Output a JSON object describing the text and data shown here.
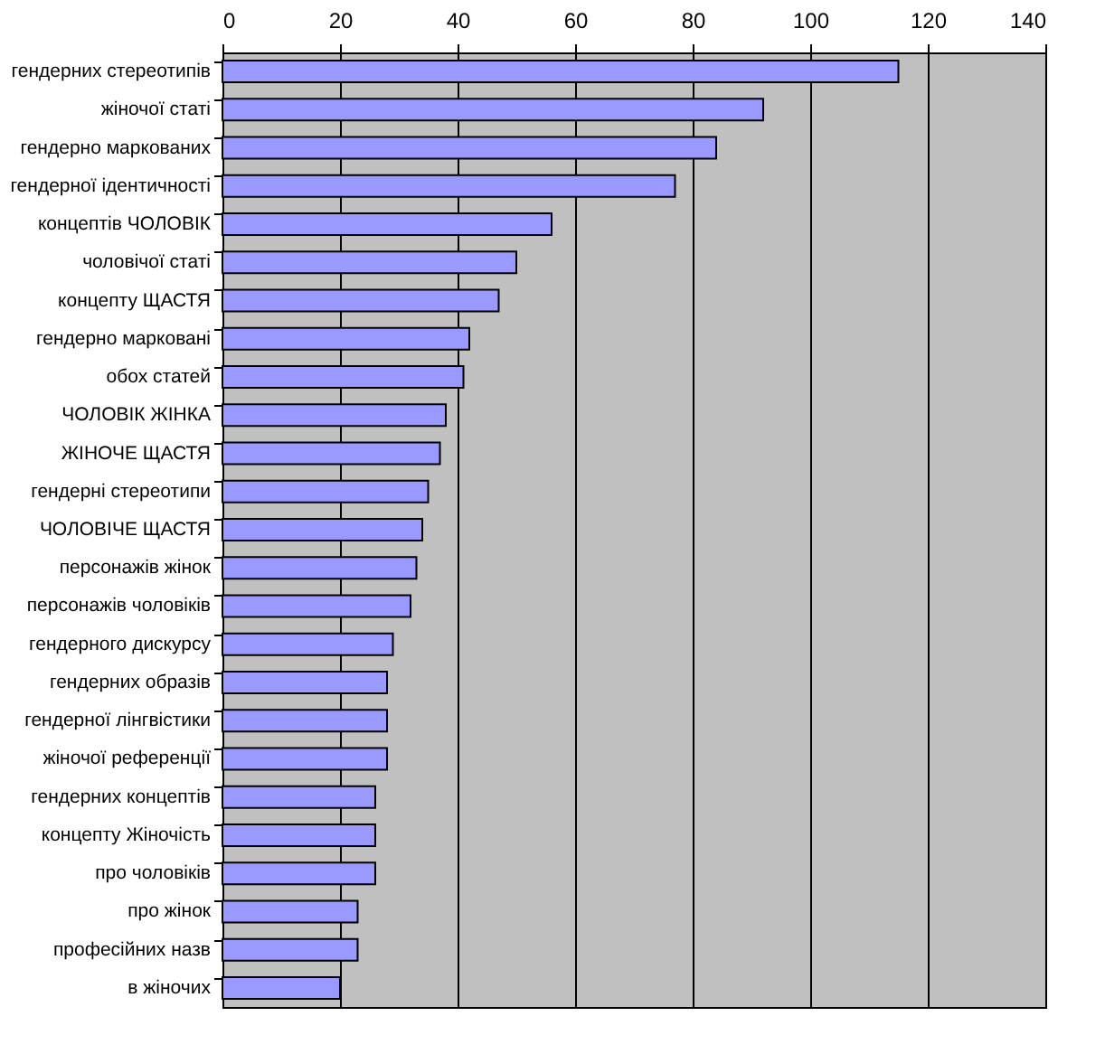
{
  "chart_data": {
    "type": "bar",
    "orientation": "horizontal",
    "categories": [
      "гендерних стереотипів",
      "жіночої статі",
      "гендерно маркованих",
      "гендерної ідентичності",
      "концептів ЧОЛОВІК",
      "чоловічої статі",
      "концепту ЩАСТЯ",
      "гендерно марковані",
      "обох статей",
      "ЧОЛОВІК ЖІНКА",
      "ЖІНОЧЕ ЩАСТЯ",
      "гендерні стереотипи",
      "ЧОЛОВІЧЕ ЩАСТЯ",
      "персонажів жінок",
      "персонажів чоловіків",
      "гендерного дискурсу",
      "гендерних образів",
      "гендерної лінгвістики",
      "жіночої референції",
      "гендерних концептів",
      "концепту Жіночість",
      "про чоловіків",
      "про жінок",
      "професійних назв",
      "в жіночих"
    ],
    "values": [
      115,
      92,
      84,
      77,
      56,
      50,
      47,
      42,
      41,
      38,
      37,
      35,
      34,
      33,
      32,
      29,
      28,
      28,
      28,
      26,
      26,
      26,
      23,
      23,
      20
    ],
    "color": "#9999ff",
    "xlim": [
      0,
      140
    ],
    "xticks": [
      0,
      20,
      40,
      60,
      80,
      100,
      120,
      140
    ],
    "grid": "x"
  }
}
